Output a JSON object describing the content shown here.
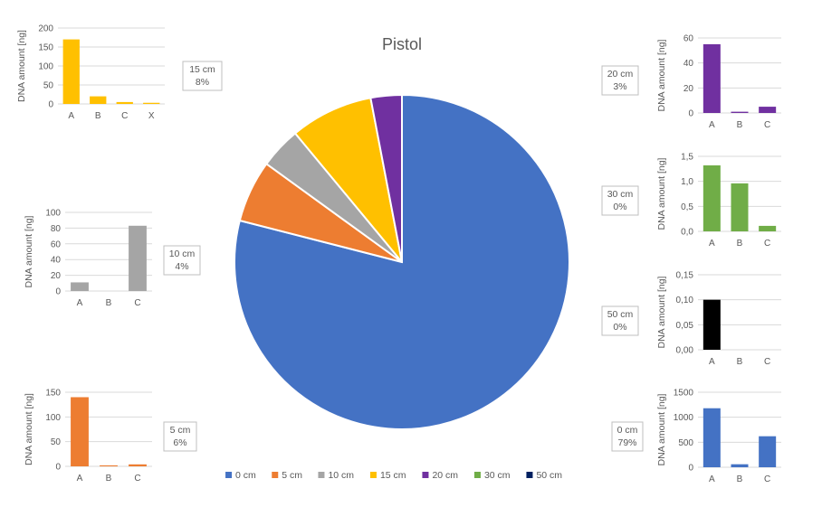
{
  "chart_data": [
    {
      "type": "pie",
      "title": "Pistol",
      "categories": [
        "0 cm",
        "5 cm",
        "10 cm",
        "15 cm",
        "20 cm",
        "30 cm",
        "50 cm"
      ],
      "values": [
        79,
        6,
        4,
        8,
        3,
        0,
        0
      ],
      "colors": [
        "#4472C4",
        "#ED7D31",
        "#A5A5A5",
        "#FFC000",
        "#7030A0",
        "#70AD47",
        "#002060"
      ],
      "data_labels": [
        {
          "category": "15 cm",
          "pct": "8%"
        },
        {
          "category": "10 cm",
          "pct": "4%"
        },
        {
          "category": "5 cm",
          "pct": "6%"
        },
        {
          "category": "20 cm",
          "pct": "3%"
        },
        {
          "category": "30 cm",
          "pct": "0%"
        },
        {
          "category": "50 cm",
          "pct": "0%"
        },
        {
          "category": "0 cm",
          "pct": "79%"
        }
      ],
      "legend_position": "bottom"
    },
    {
      "type": "bar",
      "id": "d15",
      "distance": "15 cm",
      "color": "#FFC000",
      "ylabel": "DNA amount [ng]",
      "categories": [
        "A",
        "B",
        "C",
        "X"
      ],
      "values": [
        170,
        20,
        5,
        3
      ],
      "ylim": [
        0,
        200
      ],
      "yticks": [
        "0",
        "50",
        "100",
        "150",
        "200"
      ]
    },
    {
      "type": "bar",
      "id": "d10",
      "distance": "10 cm",
      "color": "#A5A5A5",
      "ylabel": "DNA amount [ng]",
      "categories": [
        "A",
        "B",
        "C"
      ],
      "values": [
        11,
        0,
        83
      ],
      "ylim": [
        0,
        100
      ],
      "yticks": [
        "0",
        "20",
        "40",
        "60",
        "80",
        "100"
      ]
    },
    {
      "type": "bar",
      "id": "d5",
      "distance": "5 cm",
      "color": "#ED7D31",
      "ylabel": "DNA amount [ng]",
      "categories": [
        "A",
        "B",
        "C"
      ],
      "values": [
        140,
        2,
        4
      ],
      "ylim": [
        0,
        150
      ],
      "yticks": [
        "0",
        "50",
        "100",
        "150"
      ]
    },
    {
      "type": "bar",
      "id": "d20",
      "distance": "20 cm",
      "color": "#7030A0",
      "ylabel": "DNA amount [ng]",
      "categories": [
        "A",
        "B",
        "C"
      ],
      "values": [
        55,
        1,
        5
      ],
      "ylim": [
        0,
        60
      ],
      "yticks": [
        "0",
        "20",
        "40",
        "60"
      ]
    },
    {
      "type": "bar",
      "id": "d30",
      "distance": "30 cm",
      "color": "#70AD47",
      "ylabel": "DNA amount [ng]",
      "categories": [
        "A",
        "B",
        "C"
      ],
      "values": [
        1.32,
        0.96,
        0.11
      ],
      "ylim": [
        0,
        1.5
      ],
      "yticks": [
        "0,0",
        "0,5",
        "1,0",
        "1,5"
      ]
    },
    {
      "type": "bar",
      "id": "d50",
      "distance": "50 cm",
      "color": "#000000",
      "ylabel": "DNA amount [ng]",
      "categories": [
        "A",
        "B",
        "C"
      ],
      "values": [
        0.1,
        0,
        0
      ],
      "ylim": [
        0,
        0.15
      ],
      "yticks": [
        "0,00",
        "0,05",
        "0,10",
        "0,15"
      ]
    },
    {
      "type": "bar",
      "id": "d0",
      "distance": "0 cm",
      "color": "#4472C4",
      "ylabel": "DNA amount [ng]",
      "categories": [
        "A",
        "B",
        "C"
      ],
      "values": [
        1180,
        60,
        620
      ],
      "ylim": [
        0,
        1500
      ],
      "yticks": [
        "0",
        "500",
        "1000",
        "1500"
      ]
    }
  ]
}
